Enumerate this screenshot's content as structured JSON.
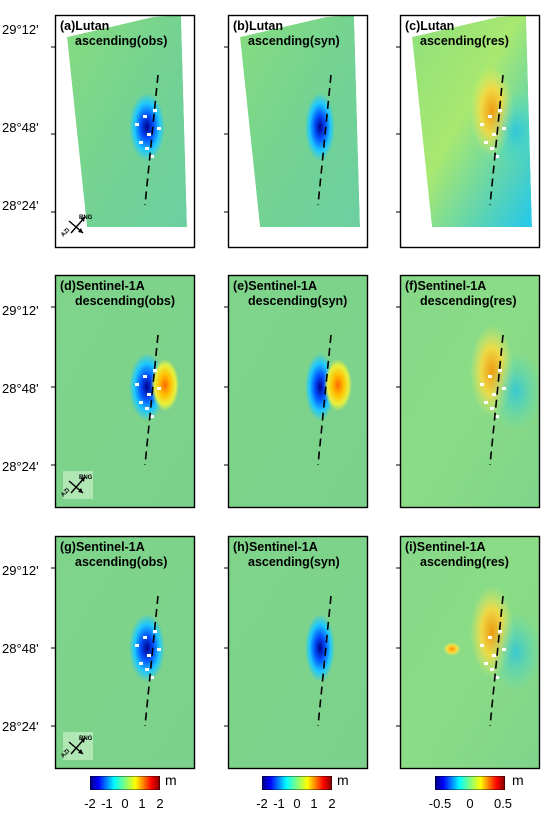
{
  "y_ticks": [
    "29°12'",
    "28°48'",
    "28°24'"
  ],
  "panels": [
    {
      "key": "a",
      "title1": "(a)Lutan",
      "title2": "ascending(obs)",
      "sat": "lutan",
      "kind": "obs",
      "compass": [
        "RNG",
        "AZI"
      ]
    },
    {
      "key": "b",
      "title1": "(b)Lutan",
      "title2": "ascending(syn)",
      "sat": "lutan",
      "kind": "syn"
    },
    {
      "key": "c",
      "title1": "(c)Lutan",
      "title2": "ascending(res)",
      "sat": "lutan",
      "kind": "res"
    },
    {
      "key": "d",
      "title1": "(d)Sentinel-1A",
      "title2": "descending(obs)",
      "sat": "s1desc",
      "kind": "obs",
      "compass": [
        "RNG",
        "AZI"
      ]
    },
    {
      "key": "e",
      "title1": "(e)Sentinel-1A",
      "title2": "descending(syn)",
      "sat": "s1desc",
      "kind": "syn"
    },
    {
      "key": "f",
      "title1": "(f)Sentinel-1A",
      "title2": "descending(res)",
      "sat": "s1desc",
      "kind": "res"
    },
    {
      "key": "g",
      "title1": "(g)Sentinel-1A",
      "title2": "ascending(obs)",
      "sat": "s1asc",
      "kind": "obs",
      "compass": [
        "RNG",
        "AZI"
      ]
    },
    {
      "key": "h",
      "title1": "(h)Sentinel-1A",
      "title2": "ascending(syn)",
      "sat": "s1asc",
      "kind": "syn"
    },
    {
      "key": "i",
      "title1": "(i)Sentinel-1A",
      "title2": "ascending(res)",
      "sat": "s1asc",
      "kind": "res"
    }
  ],
  "colorbars": [
    {
      "ticks": [
        "-2",
        "-1",
        "0",
        "1",
        "2"
      ],
      "unit": "m"
    },
    {
      "ticks": [
        "-2",
        "-1",
        "0",
        "1",
        "2"
      ],
      "unit": "m"
    },
    {
      "ticks": [
        "-0.5",
        "0",
        "0.5"
      ],
      "unit": "m"
    }
  ],
  "colors": {
    "background_green": "#7fd48a",
    "frame": "#000000",
    "fault": "#000000"
  }
}
